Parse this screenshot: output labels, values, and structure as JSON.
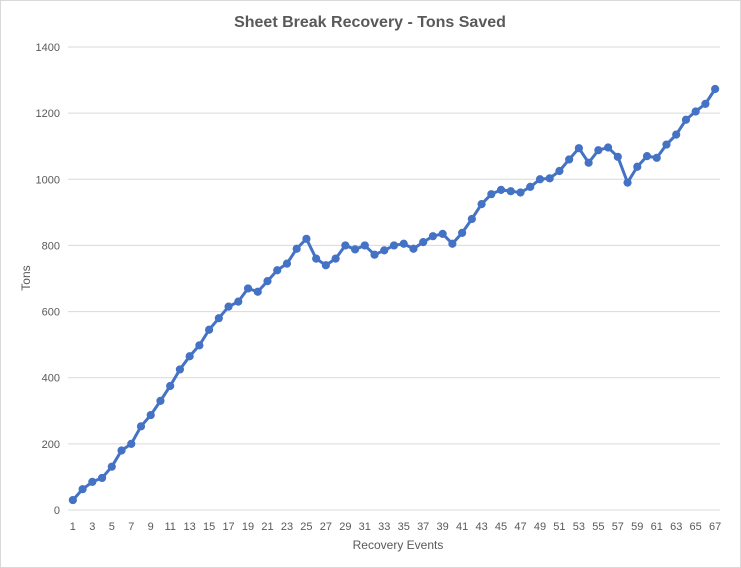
{
  "chart_data": {
    "type": "line",
    "title": "Sheet Break Recovery  -  Tons Saved",
    "xlabel": "Recovery Events",
    "ylabel": "Tons",
    "ylim": [
      0,
      1400
    ],
    "yticks": [
      0,
      200,
      400,
      600,
      800,
      1000,
      1200,
      1400
    ],
    "xticks": [
      1,
      3,
      5,
      7,
      9,
      11,
      13,
      15,
      17,
      19,
      21,
      23,
      25,
      27,
      29,
      31,
      33,
      35,
      37,
      39,
      41,
      43,
      45,
      47,
      49,
      51,
      53,
      55,
      57,
      59,
      61,
      63,
      65,
      67
    ],
    "grid": true,
    "legend": "none",
    "line_color": "#4472c4",
    "x": [
      1,
      2,
      3,
      4,
      5,
      6,
      7,
      8,
      9,
      10,
      11,
      12,
      13,
      14,
      15,
      16,
      17,
      18,
      19,
      20,
      21,
      22,
      23,
      24,
      25,
      26,
      27,
      28,
      29,
      30,
      31,
      32,
      33,
      34,
      35,
      36,
      37,
      38,
      39,
      40,
      41,
      42,
      43,
      44,
      45,
      46,
      47,
      48,
      49,
      50,
      51,
      52,
      53,
      54,
      55,
      56,
      57,
      58,
      59,
      60,
      61,
      62,
      63,
      64,
      65,
      66,
      67
    ],
    "values": [
      30,
      63,
      85,
      97,
      131,
      180,
      200,
      253,
      287,
      330,
      375,
      425,
      465,
      498,
      545,
      580,
      615,
      630,
      670,
      660,
      692,
      725,
      745,
      790,
      820,
      760,
      740,
      760,
      800,
      788,
      800,
      772,
      785,
      800,
      805,
      790,
      810,
      828,
      835,
      805,
      838,
      880,
      925,
      955,
      968,
      964,
      960,
      977,
      1000,
      1003,
      1025,
      1060,
      1094,
      1050,
      1088,
      1096,
      1068,
      990,
      1038,
      1070,
      1065,
      1105,
      1135,
      1180,
      1205,
      1228,
      1273
    ]
  }
}
